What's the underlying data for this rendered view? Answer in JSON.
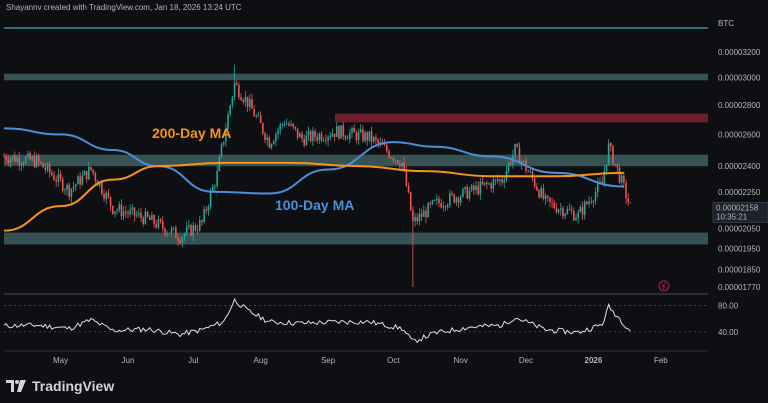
{
  "header": {
    "text": "Shayannv created with TradingView.com, Jan 18, 2026 13:24 UTC"
  },
  "footer": {
    "brand": "TradingView"
  },
  "colors": {
    "background": "#0e0f13",
    "up": "#26a69a",
    "down": "#ef5350",
    "ma200": "#f7931a",
    "ma100": "#4a90d9",
    "rsi": "#e0e0e0",
    "zone": "#5a8a8a",
    "resistance": "#8b2635",
    "topline": "#4dd0e1"
  },
  "chart_data": [
    {
      "type": "candlestick",
      "symbol": "BTC",
      "last_price": "0.00002158",
      "countdown": "10:35:21",
      "y_ticks": [
        "0.00003200",
        "0.00003000",
        "0.00002800",
        "0.00002600",
        "0.00002400",
        "0.00002250",
        "0.00002050",
        "0.00001950",
        "0.00001850",
        "0.00001770"
      ],
      "x_ticks": [
        "May",
        "Jun",
        "Jul",
        "Aug",
        "Sep",
        "Oct",
        "Nov",
        "Dec",
        "2026",
        "Feb"
      ],
      "annotations": [
        "200-Day MA",
        "100-Day MA"
      ],
      "zones": [
        {
          "kind": "support",
          "price_low": 1.97e-05,
          "price_high": 2.03e-05
        },
        {
          "kind": "support",
          "price_low": 2.4e-05,
          "price_high": 2.47e-05
        },
        {
          "kind": "support",
          "price_low": 2.98e-05,
          "price_high": 3.03e-05
        },
        {
          "kind": "resistance",
          "price_low": 2.68e-05,
          "price_high": 2.74e-05
        }
      ],
      "ma200": [
        {
          "date": "2025-04-05",
          "price": 2.04e-05
        },
        {
          "date": "2025-05-01",
          "price": 2.17e-05
        },
        {
          "date": "2025-05-25",
          "price": 2.32e-05
        },
        {
          "date": "2025-06-15",
          "price": 2.4e-05
        },
        {
          "date": "2025-07-15",
          "price": 2.42e-05
        },
        {
          "date": "2025-08-15",
          "price": 2.42e-05
        },
        {
          "date": "2025-09-15",
          "price": 2.4e-05
        },
        {
          "date": "2025-10-15",
          "price": 2.37e-05
        },
        {
          "date": "2025-11-15",
          "price": 2.34e-05
        },
        {
          "date": "2025-12-15",
          "price": 2.34e-05
        },
        {
          "date": "2026-01-15",
          "price": 2.36e-05
        }
      ],
      "ma100": [
        {
          "date": "2025-04-05",
          "price": 2.64e-05
        },
        {
          "date": "2025-05-01",
          "price": 2.6e-05
        },
        {
          "date": "2025-05-25",
          "price": 2.5e-05
        },
        {
          "date": "2025-06-15",
          "price": 2.4e-05
        },
        {
          "date": "2025-07-10",
          "price": 2.25e-05
        },
        {
          "date": "2025-08-05",
          "price": 2.24e-05
        },
        {
          "date": "2025-09-01",
          "price": 2.38e-05
        },
        {
          "date": "2025-10-01",
          "price": 2.55e-05
        },
        {
          "date": "2025-10-20",
          "price": 2.52e-05
        },
        {
          "date": "2025-11-15",
          "price": 2.46e-05
        },
        {
          "date": "2025-12-15",
          "price": 2.36e-05
        },
        {
          "date": "2026-01-15",
          "price": 2.28e-05
        }
      ],
      "candles_sampled": [
        {
          "date": "2025-04-05",
          "close": 2.46e-05
        },
        {
          "date": "2025-04-20",
          "close": 2.43e-05
        },
        {
          "date": "2025-05-05",
          "close": 2.26e-05
        },
        {
          "date": "2025-05-15",
          "close": 2.38e-05
        },
        {
          "date": "2025-05-25",
          "close": 2.16e-05
        },
        {
          "date": "2025-06-10",
          "close": 2.1e-05
        },
        {
          "date": "2025-06-25",
          "close": 2.01e-05
        },
        {
          "date": "2025-07-05",
          "close": 2.08e-05
        },
        {
          "date": "2025-07-12",
          "close": 2.35e-05
        },
        {
          "date": "2025-07-20",
          "close": 2.95e-05
        },
        {
          "date": "2025-07-26",
          "close": 2.82e-05
        },
        {
          "date": "2025-08-05",
          "close": 2.55e-05
        },
        {
          "date": "2025-08-12",
          "close": 2.69e-05
        },
        {
          "date": "2025-08-20",
          "close": 2.57e-05
        },
        {
          "date": "2025-09-05",
          "close": 2.62e-05
        },
        {
          "date": "2025-09-20",
          "close": 2.58e-05
        },
        {
          "date": "2025-10-05",
          "close": 2.42e-05
        },
        {
          "date": "2025-10-10",
          "close": 2.08e-05
        },
        {
          "date": "2025-10-20",
          "close": 2.18e-05
        },
        {
          "date": "2025-11-05",
          "close": 2.25e-05
        },
        {
          "date": "2025-11-20",
          "close": 2.32e-05
        },
        {
          "date": "2025-11-26",
          "close": 2.5e-05
        },
        {
          "date": "2025-12-10",
          "close": 2.19e-05
        },
        {
          "date": "2025-12-25",
          "close": 2.12e-05
        },
        {
          "date": "2026-01-05",
          "close": 2.3e-05
        },
        {
          "date": "2026-01-08",
          "close": 2.52e-05
        },
        {
          "date": "2026-01-18",
          "close": 2.16e-05
        }
      ],
      "wick_extremes": [
        {
          "date": "2025-07-20",
          "high": 3.1e-05
        },
        {
          "date": "2025-10-10",
          "low": 1.77e-05
        }
      ]
    },
    {
      "type": "line",
      "name": "RSI",
      "y_ticks": [
        "80.00",
        "40.00"
      ],
      "series": [
        {
          "values": [
            {
              "date": "2025-04-05",
              "value": 49
            },
            {
              "date": "2025-04-20",
              "value": 50
            },
            {
              "date": "2025-05-05",
              "value": 45
            },
            {
              "date": "2025-05-15",
              "value": 58
            },
            {
              "date": "2025-05-25",
              "value": 42
            },
            {
              "date": "2025-06-10",
              "value": 44
            },
            {
              "date": "2025-06-25",
              "value": 36
            },
            {
              "date": "2025-07-05",
              "value": 43
            },
            {
              "date": "2025-07-15",
              "value": 55
            },
            {
              "date": "2025-07-20",
              "value": 88
            },
            {
              "date": "2025-07-26",
              "value": 72
            },
            {
              "date": "2025-08-05",
              "value": 55
            },
            {
              "date": "2025-08-20",
              "value": 53
            },
            {
              "date": "2025-09-05",
              "value": 55
            },
            {
              "date": "2025-09-20",
              "value": 55
            },
            {
              "date": "2025-10-05",
              "value": 45
            },
            {
              "date": "2025-10-10",
              "value": 25
            },
            {
              "date": "2025-10-20",
              "value": 38
            },
            {
              "date": "2025-11-05",
              "value": 47
            },
            {
              "date": "2025-11-20",
              "value": 50
            },
            {
              "date": "2025-11-26",
              "value": 62
            },
            {
              "date": "2025-12-10",
              "value": 43
            },
            {
              "date": "2025-12-25",
              "value": 39
            },
            {
              "date": "2026-01-05",
              "value": 51
            },
            {
              "date": "2026-01-08",
              "value": 78
            },
            {
              "date": "2026-01-18",
              "value": 42
            }
          ]
        }
      ]
    }
  ]
}
